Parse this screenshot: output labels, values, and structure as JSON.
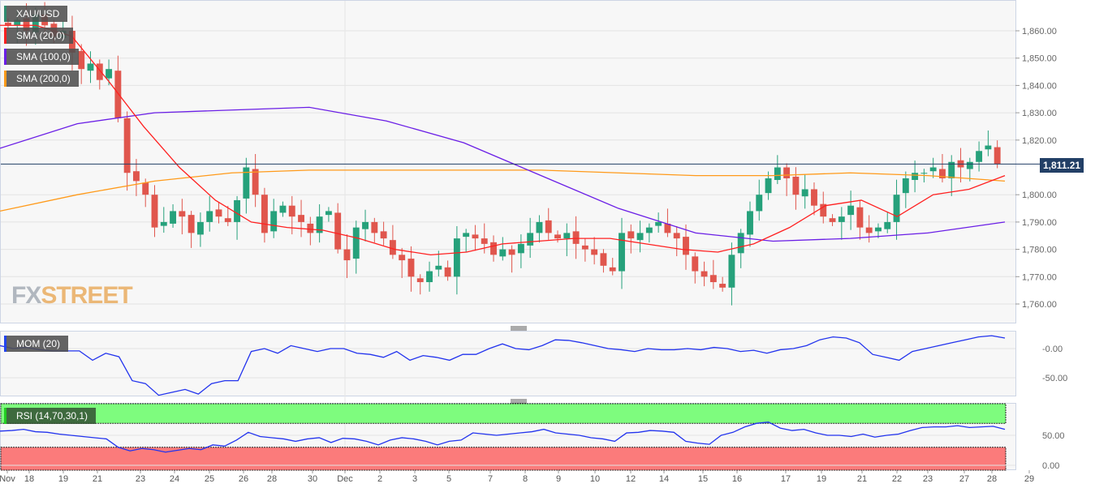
{
  "chart_data": {
    "type": "candlestick",
    "symbol": "XAU/USD",
    "legend": [
      "SMA (20,0)",
      "SMA (100,0)",
      "SMA (200,0)"
    ],
    "colors": {
      "up": "#26a17b",
      "down": "#e0564d",
      "sma20": "#ff2020",
      "sma100": "#6a1ee6",
      "sma200": "#ff9a1a",
      "mom": "#2233ee",
      "rsi": "#2233ee",
      "overbought": "#7efc7e",
      "oversold": "#fb7b7b",
      "last_price": "#223f66"
    },
    "price_axis": {
      "ticks": [
        "1,860.00",
        "1,850.00",
        "1,840.00",
        "1,830.00",
        "1,820.00",
        "1,800.00",
        "1,790.00",
        "1,780.00",
        "1,770.00",
        "1,760.00"
      ],
      "range": [
        1753,
        1871
      ]
    },
    "last_price": "1,811.21",
    "last_price_value": 1811.21,
    "x_labels": [
      "Nov",
      "18",
      "19",
      "21",
      "23",
      "24",
      "25",
      "26",
      "28",
      "30",
      "Dec",
      "2",
      "3",
      "5",
      "7",
      "8",
      "9",
      "10",
      "12",
      "14",
      "15",
      "16",
      "17",
      "19",
      "21",
      "22",
      "23",
      "27",
      "28",
      "29"
    ],
    "closes": [
      1862,
      1864,
      1860,
      1866,
      1862,
      1858,
      1860,
      1852,
      1846,
      1848,
      1842,
      1846,
      1828,
      1808,
      1805,
      1800,
      1788,
      1790,
      1794,
      1792,
      1786,
      1790,
      1794,
      1792,
      1790,
      1798,
      1810,
      1800,
      1786,
      1794,
      1796,
      1792,
      1790,
      1786,
      1792,
      1794,
      1780,
      1776,
      1788,
      1790,
      1786,
      1784,
      1778,
      1776,
      1770,
      1768,
      1772,
      1774,
      1770,
      1784,
      1786,
      1784,
      1782,
      1778,
      1780,
      1778,
      1782,
      1786,
      1790,
      1786,
      1784,
      1786,
      1782,
      1780,
      1778,
      1774,
      1772,
      1786,
      1784,
      1786,
      1788,
      1790,
      1786,
      1784,
      1778,
      1772,
      1770,
      1768,
      1766,
      1778,
      1786,
      1794,
      1800,
      1806,
      1810,
      1806,
      1800,
      1802,
      1796,
      1792,
      1790,
      1792,
      1796,
      1788,
      1786,
      1788,
      1790,
      1800,
      1806,
      1808,
      1808,
      1810,
      1806,
      1812,
      1810,
      1812,
      1816,
      1818,
      1811.21
    ],
    "sma20": [
      1862,
      1862,
      1858,
      1842,
      1825,
      1810,
      1798,
      1790,
      1788,
      1787,
      1784,
      1780,
      1778,
      1779,
      1782,
      1783,
      1784,
      1784,
      1782,
      1780,
      1779,
      1782,
      1788,
      1796,
      1798,
      1792,
      1800,
      1802,
      1807
    ],
    "sma100": [
      1817,
      1826,
      1830,
      1831,
      1832,
      1827,
      1819,
      1807,
      1795,
      1786,
      1783,
      1784,
      1786,
      1790
    ],
    "sma200": [
      1794,
      1800,
      1805,
      1808,
      1809,
      1809,
      1809,
      1809,
      1808,
      1807,
      1807,
      1808,
      1807,
      1805
    ],
    "mom": {
      "label": "MOM (20)",
      "ticks": [
        "-0.00",
        "-50.00"
      ],
      "values": [
        5,
        0,
        2,
        -2,
        -4,
        -4,
        -4,
        -20,
        -8,
        -14,
        -55,
        -60,
        -80,
        -75,
        -70,
        -78,
        -60,
        -55,
        -55,
        -5,
        0,
        -8,
        5,
        0,
        -5,
        0,
        0,
        -8,
        -10,
        -15,
        -5,
        -20,
        -12,
        -15,
        -20,
        -10,
        -10,
        0,
        8,
        0,
        -2,
        5,
        15,
        14,
        10,
        5,
        0,
        -2,
        -5,
        0,
        -2,
        -2,
        0,
        -2,
        2,
        0,
        -5,
        -3,
        -8,
        -2,
        0,
        5,
        15,
        20,
        18,
        10,
        -10,
        -15,
        -20,
        -5,
        0,
        5,
        10,
        15,
        20,
        22,
        18
      ]
    },
    "rsi": {
      "label": "RSI (14,70,30,1)",
      "ticks": [
        "50.00",
        "0.00"
      ],
      "levels": [
        70,
        30
      ],
      "values": [
        57,
        58,
        60,
        56,
        55,
        52,
        50,
        48,
        46,
        44,
        30,
        24,
        28,
        26,
        22,
        25,
        28,
        26,
        34,
        32,
        42,
        55,
        48,
        46,
        44,
        40,
        44,
        46,
        38,
        45,
        44,
        40,
        34,
        42,
        46,
        44,
        40,
        34,
        40,
        42,
        54,
        52,
        50,
        52,
        54,
        56,
        60,
        54,
        52,
        50,
        46,
        44,
        40,
        54,
        55,
        58,
        57,
        55,
        40,
        37,
        35,
        50,
        55,
        64,
        70,
        72,
        62,
        58,
        60,
        54,
        50,
        50,
        48,
        52,
        47,
        50,
        52,
        58,
        63,
        64,
        64,
        66,
        63,
        64,
        65,
        60
      ]
    }
  },
  "watermark": {
    "fx": "FX",
    "street": "STREET"
  }
}
